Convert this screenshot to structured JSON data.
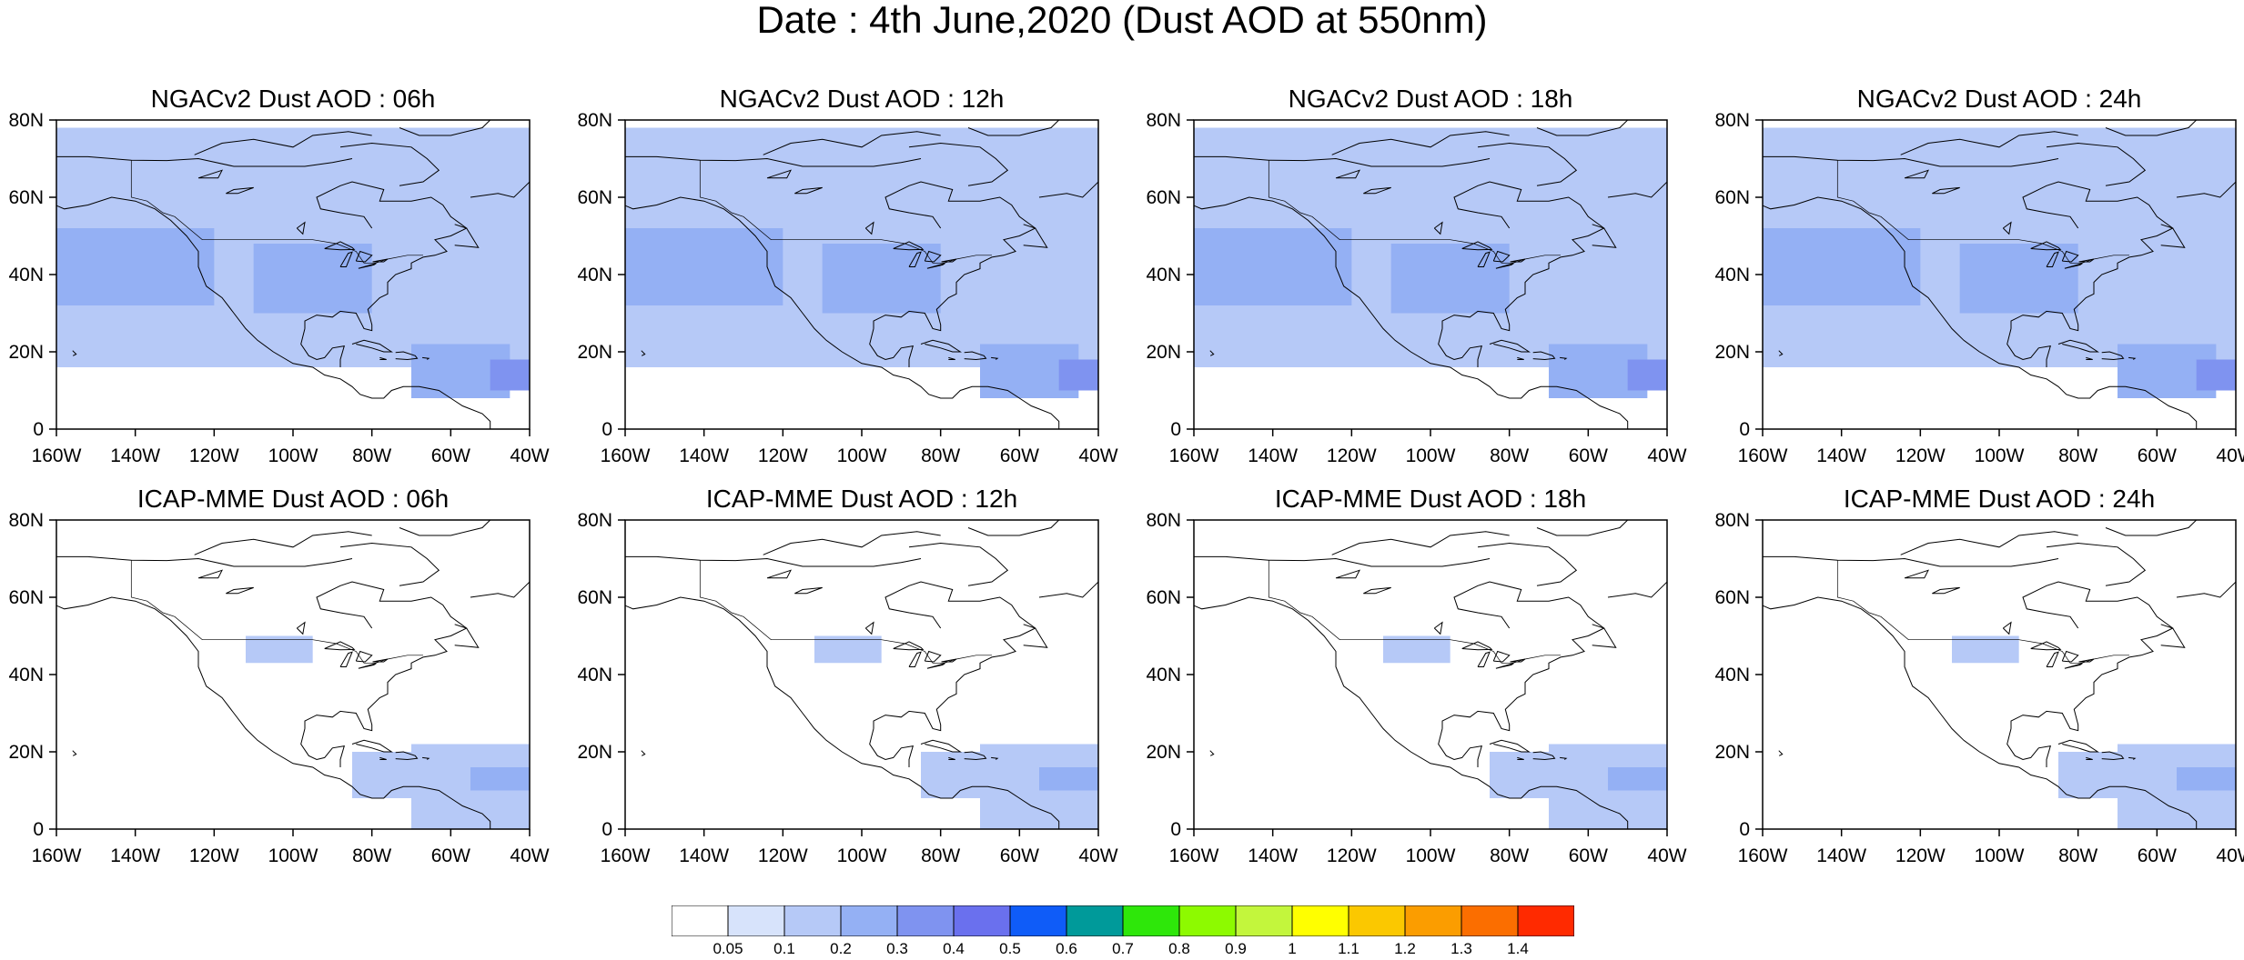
{
  "title": "Date : 4th June,2020 (Dust AOD at 550nm)",
  "panels": [
    {
      "title": "NGACv2 Dust AOD : 06h",
      "model": "NGACv2",
      "hour": "06h"
    },
    {
      "title": "NGACv2 Dust AOD : 12h",
      "model": "NGACv2",
      "hour": "12h"
    },
    {
      "title": "NGACv2 Dust AOD : 18h",
      "model": "NGACv2",
      "hour": "18h"
    },
    {
      "title": "NGACv2 Dust AOD : 24h",
      "model": "NGACv2",
      "hour": "24h"
    },
    {
      "title": "ICAP-MME Dust AOD : 06h",
      "model": "ICAP-MME",
      "hour": "06h"
    },
    {
      "title": "ICAP-MME Dust AOD : 12h",
      "model": "ICAP-MME",
      "hour": "12h"
    },
    {
      "title": "ICAP-MME Dust AOD : 18h",
      "model": "ICAP-MME",
      "hour": "18h"
    },
    {
      "title": "ICAP-MME Dust AOD : 24h",
      "model": "ICAP-MME",
      "hour": "24h"
    }
  ],
  "map": {
    "lon_range": [
      -160,
      -40
    ],
    "lat_range": [
      0,
      80
    ],
    "lon_ticks": [
      -160,
      -140,
      -120,
      -100,
      -80,
      -60,
      -40
    ],
    "lon_tick_labels": [
      "160W",
      "140W",
      "120W",
      "100W",
      "80W",
      "60W",
      "40W"
    ],
    "lat_ticks": [
      0,
      20,
      40,
      60,
      80
    ],
    "lat_tick_labels": [
      "0",
      "20N",
      "40N",
      "60N",
      "80N"
    ]
  },
  "colorbar": {
    "labels": [
      "0.05",
      "0.1",
      "0.2",
      "0.3",
      "0.4",
      "0.5",
      "0.6",
      "0.7",
      "0.8",
      "0.9",
      "1",
      "1.1",
      "1.2",
      "1.3",
      "1.4"
    ],
    "colors": [
      "#ffffff",
      "#d7e3fb",
      "#b6c9f7",
      "#94b0f4",
      "#7f93f0",
      "#6a70ee",
      "#0f5cf8",
      "#009a9a",
      "#2ee70a",
      "#8dfa00",
      "#c3f63c",
      "#ffff00",
      "#fbc800",
      "#fb9d00",
      "#fb6e00",
      "#ff2a00"
    ]
  },
  "fields": {
    "ngac": [
      {
        "lon": [
          -160,
          -40
        ],
        "lat": [
          16,
          78
        ],
        "aod": 0.1
      },
      {
        "lon": [
          -160,
          -120
        ],
        "lat": [
          32,
          52
        ],
        "aod": 0.2
      },
      {
        "lon": [
          -110,
          -80
        ],
        "lat": [
          30,
          48
        ],
        "aod": 0.2
      },
      {
        "lon": [
          -70,
          -45
        ],
        "lat": [
          8,
          22
        ],
        "aod": 0.2
      },
      {
        "lon": [
          -50,
          -40
        ],
        "lat": [
          10,
          18
        ],
        "aod": 0.3
      }
    ],
    "icap": [
      {
        "lon": [
          -70,
          -40
        ],
        "lat": [
          0,
          22
        ],
        "aod": 0.1
      },
      {
        "lon": [
          -85,
          -70
        ],
        "lat": [
          8,
          20
        ],
        "aod": 0.1
      },
      {
        "lon": [
          -112,
          -95
        ],
        "lat": [
          43,
          50
        ],
        "aod": 0.1
      },
      {
        "lon": [
          -55,
          -40
        ],
        "lat": [
          10,
          16
        ],
        "aod": 0.2
      }
    ]
  }
}
